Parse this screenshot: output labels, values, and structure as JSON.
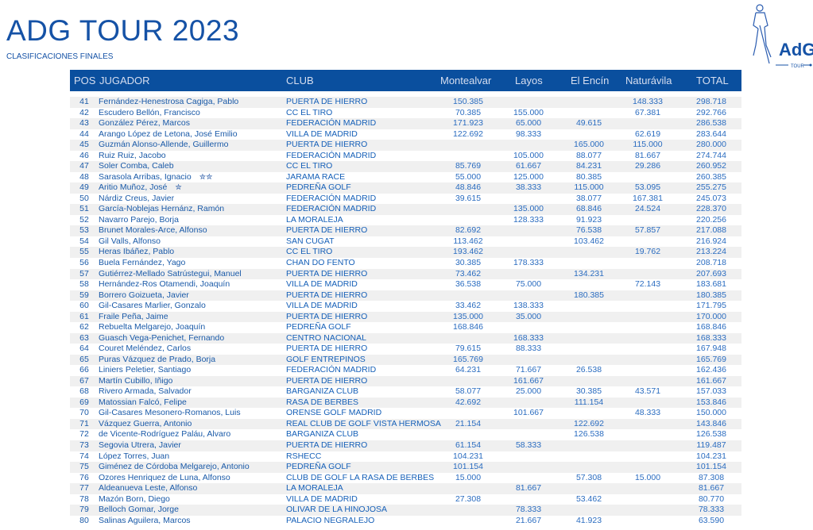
{
  "header": {
    "title": "ADG TOUR 2023",
    "subtitle": "CLASIFICACIONES FINALES",
    "logo_text": "AdG",
    "logo_sub": "TOUR"
  },
  "columns": {
    "pos": "POS",
    "player": "JUGADOR",
    "club": "CLUB",
    "montealvar": "Montealvar",
    "layos": "Layos",
    "encin": "El Encín",
    "naturavila": "Naturávila",
    "total": "TOTAL"
  },
  "rows": [
    [
      "41",
      "Fernández-Henestrosa Cagiga, Pablo",
      "",
      "PUERTA DE HIERRO",
      "150.385",
      "",
      "",
      "148.333",
      "298.718"
    ],
    [
      "42",
      "Escudero Bellón, Francisco",
      "",
      "CC EL TIRO",
      "70.385",
      "155.000",
      "",
      "67.381",
      "292.766"
    ],
    [
      "43",
      "González Pérez, Marcos",
      "",
      "FEDERACIÓN MADRID",
      "171.923",
      "65.000",
      "49.615",
      "",
      "286.538"
    ],
    [
      "44",
      "Arango López de Letona, José Emilio",
      "",
      "VILLA DE MADRID",
      "122.692",
      "98.333",
      "",
      "62.619",
      "283.644"
    ],
    [
      "45",
      "Guzmán Alonso-Allende, Guillermo",
      "",
      "PUERTA DE HIERRO",
      "",
      "",
      "165.000",
      "115.000",
      "280.000"
    ],
    [
      "46",
      "Ruiz Ruiz, Jacobo",
      "",
      "FEDERACIÓN MADRID",
      "",
      "105.000",
      "88.077",
      "81.667",
      "274.744"
    ],
    [
      "47",
      "Soler Comba, Caleb",
      "",
      "CC EL TIRO",
      "85.769",
      "61.667",
      "84.231",
      "29.286",
      "260.952"
    ],
    [
      "48",
      "Sarasola Arribas, Ignacio",
      "✮✮",
      "JARAMA RACE",
      "55.000",
      "125.000",
      "80.385",
      "",
      "260.385"
    ],
    [
      "49",
      "Aritio Muñoz, José",
      "✮",
      "PEDREÑA GOLF",
      "48.846",
      "38.333",
      "115.000",
      "53.095",
      "255.275"
    ],
    [
      "50",
      "Nárdiz Creus, Javier",
      "",
      "FEDERACIÓN MADRID",
      "39.615",
      "",
      "38.077",
      "167.381",
      "245.073"
    ],
    [
      "51",
      "García-Noblejas Hernánz, Ramón",
      "",
      "FEDERACIÓN MADRID",
      "",
      "135.000",
      "68.846",
      "24.524",
      "228.370"
    ],
    [
      "52",
      "Navarro Parejo, Borja",
      "",
      "LA MORALEJA",
      "",
      "128.333",
      "91.923",
      "",
      "220.256"
    ],
    [
      "53",
      "Brunet Morales-Arce, Alfonso",
      "",
      "PUERTA DE HIERRO",
      "82.692",
      "",
      "76.538",
      "57.857",
      "217.088"
    ],
    [
      "54",
      "Gil Valls, Alfonso",
      "",
      "SAN CUGAT",
      "113.462",
      "",
      "103.462",
      "",
      "216.924"
    ],
    [
      "55",
      "Heras Ibáñez, Pablo",
      "",
      "CC EL TIRO",
      "193.462",
      "",
      "",
      "19.762",
      "213.224"
    ],
    [
      "56",
      "Buela Fernández, Yago",
      "",
      "CHAN DO FENTO",
      "30.385",
      "178.333",
      "",
      "",
      "208.718"
    ],
    [
      "57",
      "Gutiérrez-Mellado Satrústegui, Manuel",
      "",
      "PUERTA DE HIERRO",
      "73.462",
      "",
      "134.231",
      "",
      "207.693"
    ],
    [
      "58",
      "Hernández-Ros Otamendi, Joaquín",
      "",
      "VILLA DE MADRID",
      "36.538",
      "75.000",
      "",
      "72.143",
      "183.681"
    ],
    [
      "59",
      "Borrero Goizueta, Javier",
      "",
      "PUERTA DE HIERRO",
      "",
      "",
      "180.385",
      "",
      "180.385"
    ],
    [
      "60",
      "Gil-Casares Marlier, Gonzalo",
      "",
      "VILLA DE MADRID",
      "33.462",
      "138.333",
      "",
      "",
      "171.795"
    ],
    [
      "61",
      "Fraile Peña, Jaime",
      "",
      "PUERTA DE HIERRO",
      "135.000",
      "35.000",
      "",
      "",
      "170.000"
    ],
    [
      "62",
      "Rebuelta Melgarejo, Joaquín",
      "",
      "PEDREÑA GOLF",
      "168.846",
      "",
      "",
      "",
      "168.846"
    ],
    [
      "63",
      "Guasch Vega-Penichet, Fernando",
      "",
      "CENTRO NACIONAL",
      "",
      "168.333",
      "",
      "",
      "168.333"
    ],
    [
      "64",
      "Couret Meléndez, Carlos",
      "",
      "PUERTA DE HIERRO",
      "79.615",
      "88.333",
      "",
      "",
      "167.948"
    ],
    [
      "65",
      "Puras Vázquez de Prado, Borja",
      "",
      "GOLF ENTREPINOS",
      "165.769",
      "",
      "",
      "",
      "165.769"
    ],
    [
      "66",
      "Liniers Peletier, Santiago",
      "",
      "FEDERACIÓN MADRID",
      "64.231",
      "71.667",
      "26.538",
      "",
      "162.436"
    ],
    [
      "67",
      "Martín Cubillo, Iñigo",
      "",
      "PUERTA DE HIERRO",
      "",
      "161.667",
      "",
      "",
      "161.667"
    ],
    [
      "68",
      "Rivero Armada, Salvador",
      "",
      "BARGANIZA CLUB",
      "58.077",
      "25.000",
      "30.385",
      "43.571",
      "157.033"
    ],
    [
      "69",
      "Matossian Falcó, Felipe",
      "",
      "RASA DE BERBES",
      "42.692",
      "",
      "111.154",
      "",
      "153.846"
    ],
    [
      "70",
      "Gil-Casares Mesonero-Romanos, Luis",
      "",
      "ORENSE GOLF MADRID",
      "",
      "101.667",
      "",
      "48.333",
      "150.000"
    ],
    [
      "71",
      "Vázquez Guerra, Antonio",
      "",
      "REAL CLUB DE GOLF VISTA HERMOSA",
      "21.154",
      "",
      "122.692",
      "",
      "143.846"
    ],
    [
      "72",
      "de Vicente-Rodríguez Paláu, Alvaro",
      "",
      "BARGANIZA CLUB",
      "",
      "",
      "126.538",
      "",
      "126.538"
    ],
    [
      "73",
      "Segovia Utrera, Javier",
      "",
      "PUERTA DE HIERRO",
      "61.154",
      "58.333",
      "",
      "",
      "119.487"
    ],
    [
      "74",
      "López Torres, Juan",
      "",
      "RSHECC",
      "104.231",
      "",
      "",
      "",
      "104.231"
    ],
    [
      "75",
      "Giménez de Córdoba Melgarejo, Antonio",
      "",
      "PEDREÑA GOLF",
      "101.154",
      "",
      "",
      "",
      "101.154"
    ],
    [
      "76",
      "Ozores Henriquez de Luna, Alfonso",
      "",
      "CLUB DE GOLF LA RASA DE BERBES",
      "15.000",
      "",
      "57.308",
      "15.000",
      "87.308"
    ],
    [
      "77",
      "Aldeanueva Leste, Alfonso",
      "",
      "LA MORALEJA",
      "",
      "81.667",
      "",
      "",
      "81.667"
    ],
    [
      "78",
      "Mazón Born, Diego",
      "",
      "VILLA DE MADRID",
      "27.308",
      "",
      "53.462",
      "",
      "80.770"
    ],
    [
      "79",
      "Belloch Gomar, Jorge",
      "",
      "OLIVAR DE LA HINOJOSA",
      "",
      "78.333",
      "",
      "",
      "78.333"
    ],
    [
      "80",
      "Salinas Aguilera, Marcos",
      "",
      "PALACIO NEGRALEJO",
      "",
      "21.667",
      "41.923",
      "",
      "63.590"
    ]
  ]
}
